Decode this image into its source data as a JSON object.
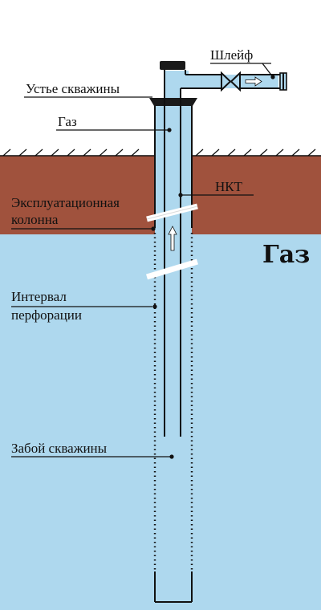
{
  "labels": {
    "shleif": "Шлейф",
    "ustye": "Устье скважины",
    "gaz_in_tube": "Газ",
    "nkt": "НКТ",
    "column_line1": "Эксплуатационная",
    "column_line2": "колонна",
    "gas_zone": "Газ",
    "interval_line1": "Интервал",
    "interval_line2": "перфорации",
    "zaboy": "Забой скважины"
  },
  "colors": {
    "soil": "#a0523d",
    "formation": "#aed8ee",
    "tube_fill": "#aed8ee",
    "line": "#111111",
    "cap": "#1a1a1a",
    "background": "#ffffff"
  }
}
